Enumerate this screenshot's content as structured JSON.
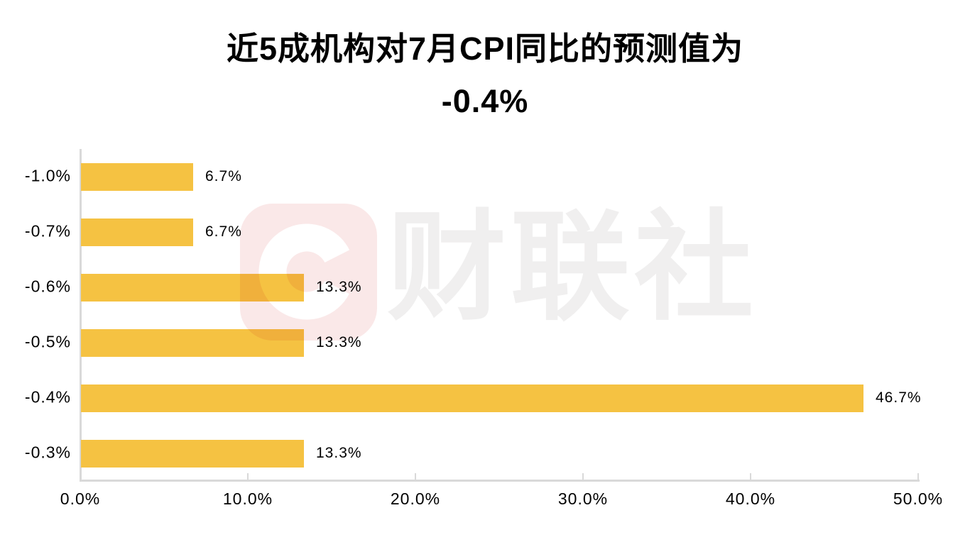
{
  "title": {
    "line1": "近5成机构对7月CPI同比的预测值为",
    "line2": "-0.4%"
  },
  "watermark": {
    "logo_letter": "C",
    "text": "财联社",
    "square_color": "#fae8e8",
    "letter_color": "#ffffff",
    "text_color": "#f0efef"
  },
  "colors": {
    "bar": "#f5c242",
    "axis": "#d9d9d9",
    "text": "#000000",
    "background": "#ffffff"
  },
  "chart_data": {
    "type": "bar",
    "orientation": "horizontal",
    "title": "近5成机构对7月CPI同比的预测值为 -0.4%",
    "categories": [
      "-1.0%",
      "-0.7%",
      "-0.6%",
      "-0.5%",
      "-0.4%",
      "-0.3%"
    ],
    "values": [
      6.7,
      6.7,
      13.3,
      13.3,
      46.7,
      13.3
    ],
    "value_labels": [
      "6.7%",
      "6.7%",
      "13.3%",
      "13.3%",
      "46.7%",
      "13.3%"
    ],
    "xlabel": "",
    "ylabel": "",
    "xlim": [
      0,
      50
    ],
    "x_tick_values": [
      0,
      10,
      20,
      30,
      40,
      50
    ],
    "x_tick_labels": [
      "0.0%",
      "10.0%",
      "20.0%",
      "30.0%",
      "40.0%",
      "50.0%"
    ],
    "grid": false,
    "legend": false,
    "bar_color": "#f5c242",
    "highlighted_category": "-0.4%"
  }
}
